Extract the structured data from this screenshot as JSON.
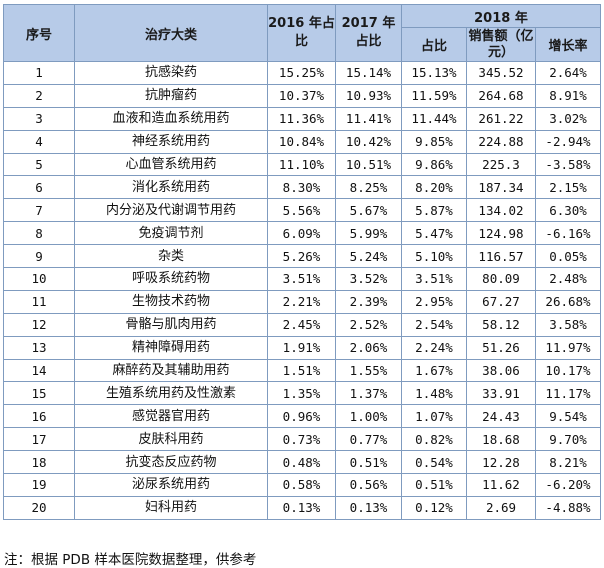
{
  "table": {
    "headers": {
      "index": "序号",
      "category": "治疗大类",
      "y2016": "2016 年占比",
      "y2017": "2017 年占比",
      "y2018": "2018 年",
      "share": "占比",
      "sales": "销售额（亿元）",
      "growth": "增长率"
    },
    "rows": [
      {
        "no": "1",
        "cat": "抗感染药",
        "p16": "15.25%",
        "p17": "15.14%",
        "p18": "15.13%",
        "sales": "345.52",
        "growth": "2.64%"
      },
      {
        "no": "2",
        "cat": "抗肿瘤药",
        "p16": "10.37%",
        "p17": "10.93%",
        "p18": "11.59%",
        "sales": "264.68",
        "growth": "8.91%"
      },
      {
        "no": "3",
        "cat": "血液和造血系统用药",
        "p16": "11.36%",
        "p17": "11.41%",
        "p18": "11.44%",
        "sales": "261.22",
        "growth": "3.02%"
      },
      {
        "no": "4",
        "cat": "神经系统用药",
        "p16": "10.84%",
        "p17": "10.42%",
        "p18": "9.85%",
        "sales": "224.88",
        "growth": "-2.94%"
      },
      {
        "no": "5",
        "cat": "心血管系统用药",
        "p16": "11.10%",
        "p17": "10.51%",
        "p18": "9.86%",
        "sales": "225.3",
        "growth": "-3.58%"
      },
      {
        "no": "6",
        "cat": "消化系统用药",
        "p16": "8.30%",
        "p17": "8.25%",
        "p18": "8.20%",
        "sales": "187.34",
        "growth": "2.15%"
      },
      {
        "no": "7",
        "cat": "内分泌及代谢调节用药",
        "p16": "5.56%",
        "p17": "5.67%",
        "p18": "5.87%",
        "sales": "134.02",
        "growth": "6.30%"
      },
      {
        "no": "8",
        "cat": "免疫调节剂",
        "p16": "6.09%",
        "p17": "5.99%",
        "p18": "5.47%",
        "sales": "124.98",
        "growth": "-6.16%"
      },
      {
        "no": "9",
        "cat": "杂类",
        "p16": "5.26%",
        "p17": "5.24%",
        "p18": "5.10%",
        "sales": "116.57",
        "growth": "0.05%"
      },
      {
        "no": "10",
        "cat": "呼吸系统药物",
        "p16": "3.51%",
        "p17": "3.52%",
        "p18": "3.51%",
        "sales": "80.09",
        "growth": "2.48%"
      },
      {
        "no": "11",
        "cat": "生物技术药物",
        "p16": "2.21%",
        "p17": "2.39%",
        "p18": "2.95%",
        "sales": "67.27",
        "growth": "26.68%"
      },
      {
        "no": "12",
        "cat": "骨骼与肌肉用药",
        "p16": "2.45%",
        "p17": "2.52%",
        "p18": "2.54%",
        "sales": "58.12",
        "growth": "3.58%"
      },
      {
        "no": "13",
        "cat": "精神障碍用药",
        "p16": "1.91%",
        "p17": "2.06%",
        "p18": "2.24%",
        "sales": "51.26",
        "growth": "11.97%"
      },
      {
        "no": "14",
        "cat": "麻醉药及其辅助用药",
        "p16": "1.51%",
        "p17": "1.55%",
        "p18": "1.67%",
        "sales": "38.06",
        "growth": "10.17%"
      },
      {
        "no": "15",
        "cat": "生殖系统用药及性激素",
        "p16": "1.35%",
        "p17": "1.37%",
        "p18": "1.48%",
        "sales": "33.91",
        "growth": "11.17%"
      },
      {
        "no": "16",
        "cat": "感觉器官用药",
        "p16": "0.96%",
        "p17": "1.00%",
        "p18": "1.07%",
        "sales": "24.43",
        "growth": "9.54%"
      },
      {
        "no": "17",
        "cat": "皮肤科用药",
        "p16": "0.73%",
        "p17": "0.77%",
        "p18": "0.82%",
        "sales": "18.68",
        "growth": "9.70%"
      },
      {
        "no": "18",
        "cat": "抗变态反应药物",
        "p16": "0.48%",
        "p17": "0.51%",
        "p18": "0.54%",
        "sales": "12.28",
        "growth": "8.21%"
      },
      {
        "no": "19",
        "cat": "泌尿系统用药",
        "p16": "0.58%",
        "p17": "0.56%",
        "p18": "0.51%",
        "sales": "11.62",
        "growth": "-6.20%"
      },
      {
        "no": "20",
        "cat": "妇科用药",
        "p16": "0.13%",
        "p17": "0.13%",
        "p18": "0.12%",
        "sales": "2.69",
        "growth": "-4.88%"
      }
    ]
  },
  "note": "注：根据 PDB 样本医院数据整理，供参考"
}
